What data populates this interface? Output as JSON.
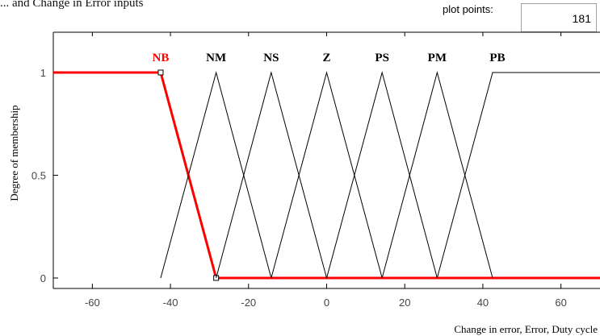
{
  "caption": "... and Change in Error inputs",
  "plot_points": {
    "label": "plot points:",
    "value": "181"
  },
  "chart_data": {
    "type": "line",
    "xlabel": "Change in error, Error, Duty cycle",
    "ylabel": "Degree of membership",
    "xlim": [
      -70,
      70
    ],
    "ylim": [
      0,
      1
    ],
    "x_ticks": [
      -60,
      -40,
      -20,
      0,
      20,
      40,
      60
    ],
    "y_ticks": [
      0,
      0.5,
      1
    ],
    "selected_series": "NB",
    "colors": {
      "selected": "#ff0000",
      "normal": "#000000"
    },
    "series": [
      {
        "name": "NB",
        "x": [
          -70,
          -42.5,
          -28.3,
          70
        ],
        "y": [
          1,
          1,
          0,
          0
        ]
      },
      {
        "name": "NM",
        "x": [
          -42.5,
          -28.3,
          -14.2
        ],
        "y": [
          0,
          1,
          0
        ]
      },
      {
        "name": "NS",
        "x": [
          -28.3,
          -14.2,
          0
        ],
        "y": [
          0,
          1,
          0
        ]
      },
      {
        "name": "Z",
        "x": [
          -14.2,
          0,
          14.2
        ],
        "y": [
          0,
          1,
          0
        ]
      },
      {
        "name": "PS",
        "x": [
          0,
          14.2,
          28.3
        ],
        "y": [
          0,
          1,
          0
        ]
      },
      {
        "name": "PM",
        "x": [
          14.2,
          28.3,
          42.5
        ],
        "y": [
          0,
          1,
          0
        ]
      },
      {
        "name": "PB",
        "x": [
          28.3,
          42.5,
          70
        ],
        "y": [
          0,
          1,
          1
        ]
      }
    ]
  }
}
